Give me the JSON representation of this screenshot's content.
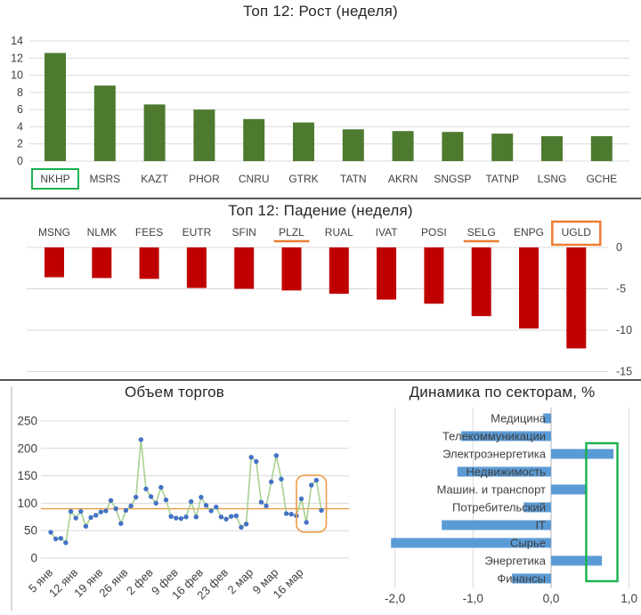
{
  "colors": {
    "growth_bar": "#4e7a30",
    "decline_bar": "#c00000",
    "sector_bar": "#5b9bd5",
    "volume_line": "#a9d18e",
    "volume_marker": "#4472c4",
    "orange_annotation": "#ed7d31",
    "orange_reference": "#ed9c47",
    "green_annotation": "#19b14f",
    "gridline": "#d9d9d9",
    "divider": "#565656"
  },
  "chart_data": [
    {
      "type": "bar",
      "title": "Топ 12: Рост (неделя)",
      "categories": [
        "NKHP",
        "MSRS",
        "KAZT",
        "PHOR",
        "CNRU",
        "GTRK",
        "TATN",
        "AKRN",
        "SNGSP",
        "TATNP",
        "LSNG",
        "GCHE"
      ],
      "values": [
        12.6,
        8.8,
        6.6,
        6.0,
        4.9,
        4.5,
        3.7,
        3.5,
        3.4,
        3.2,
        2.9,
        2.9
      ],
      "ylim": [
        0,
        14
      ],
      "yticks": [
        0,
        2,
        4,
        6,
        8,
        10,
        12,
        14
      ],
      "legend": "none",
      "grid": true,
      "bar_color": "#4e7a30",
      "boxed_category": "NKHP",
      "box_color": "#19b14f"
    },
    {
      "type": "bar",
      "title": "Топ 12: Падение (неделя)",
      "categories": [
        "MSNG",
        "NLMK",
        "FEES",
        "EUTR",
        "SFIN",
        "PLZL",
        "RUAL",
        "IVAT",
        "POSI",
        "SELG",
        "ENPG",
        "UGLD"
      ],
      "values": [
        -3.6,
        -3.7,
        -3.8,
        -4.9,
        -5.0,
        -5.2,
        -5.6,
        -6.3,
        -6.8,
        -8.3,
        -9.8,
        -12.2
      ],
      "ylim": [
        -15,
        0
      ],
      "yticks": [
        0,
        -5,
        -10,
        -15
      ],
      "yaxis_side": "right",
      "legend": "none",
      "grid": true,
      "bar_color": "#c00000",
      "underlined_categories": [
        "PLZL",
        "SELG"
      ],
      "boxed_category": "UGLD",
      "annotation_color": "#ed7d31"
    },
    {
      "type": "line",
      "title": "Объем торгов",
      "x_tick_labels": [
        "5 янв",
        "12 янв",
        "19 янв",
        "26 янв",
        "2 фев",
        "9 фев",
        "16 фев",
        "23 фев",
        "2 мар",
        "9 мар",
        "16 мар"
      ],
      "label_every_n_points": 5,
      "values": [
        47,
        35,
        36,
        28,
        85,
        73,
        85,
        58,
        74,
        78,
        84,
        86,
        105,
        90,
        63,
        87,
        95,
        111,
        216,
        126,
        112,
        100,
        129,
        106,
        76,
        73,
        72,
        75,
        103,
        75,
        111,
        96,
        86,
        93,
        75,
        71,
        76,
        77,
        56,
        62,
        184,
        176,
        102,
        95,
        139,
        187,
        144,
        81,
        80,
        77,
        108,
        65,
        133,
        142,
        87
      ],
      "ylim": [
        0,
        250
      ],
      "yticks": [
        0,
        50,
        100,
        150,
        200,
        250
      ],
      "legend": "none",
      "grid": true,
      "reference_line_value": 90,
      "line_color": "#a9d18e",
      "marker_color": "#4472c4",
      "reference_color": "#ed9c47",
      "highlight_box": {
        "from_index": 50,
        "to_index": 54,
        "color": "#ed9c47"
      }
    },
    {
      "type": "bar",
      "orientation": "horizontal",
      "title": "Динамика по секторам, %",
      "categories": [
        "Медицина",
        "Телекоммуникации",
        "Электроэнергетика",
        "Недвижимость",
        "Машин. и транспорт",
        "Потребительский",
        "IT",
        "Сырье",
        "Энергетика",
        "Финансы"
      ],
      "values": [
        -0.1,
        -1.15,
        0.8,
        -1.2,
        0.45,
        -0.35,
        -1.4,
        -2.05,
        0.65,
        -0.5
      ],
      "xlim": [
        -2.0,
        1.0
      ],
      "xtick_labels": [
        "-2,0",
        "-1,0",
        "0,0",
        "1,0"
      ],
      "xtick_values": [
        -2,
        -1,
        0,
        1
      ],
      "legend": "none",
      "grid": true,
      "bar_color": "#5b9bd5",
      "highlight_rect": {
        "x_from": 0.45,
        "x_to": 0.85,
        "row_from": 2,
        "row_to": 9,
        "color": "#19b14f"
      }
    }
  ]
}
